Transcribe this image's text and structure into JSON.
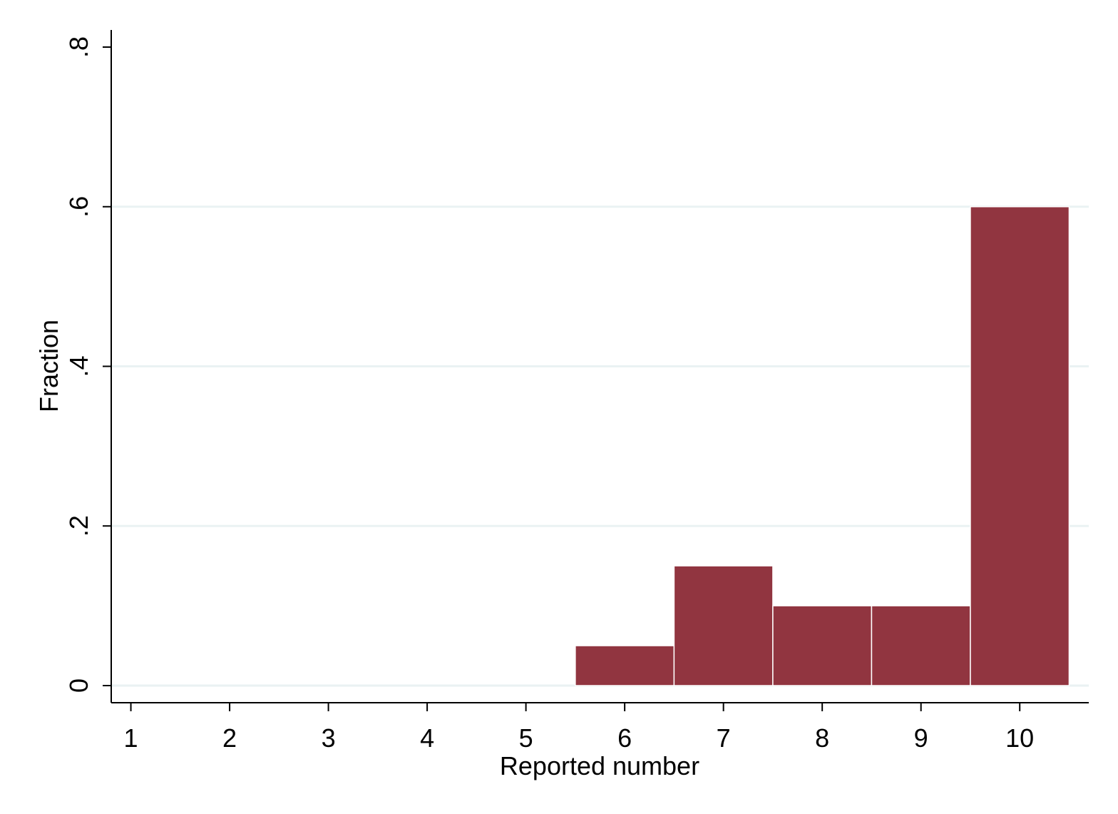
{
  "chart_data": {
    "type": "bar",
    "subtype": "histogram",
    "title": "",
    "xlabel": "Reported number",
    "ylabel": "Fraction",
    "x_ticks": [
      "1",
      "2",
      "3",
      "4",
      "5",
      "6",
      "7",
      "8",
      "9",
      "10"
    ],
    "y_ticks": [
      {
        "value": 0,
        "label": "0"
      },
      {
        "value": 0.2,
        "label": ".2"
      },
      {
        "value": 0.4,
        "label": ".4"
      },
      {
        "value": 0.6,
        "label": ".6"
      },
      {
        "value": 0.8,
        "label": ".8"
      }
    ],
    "xlim": [
      0.83,
      10.67
    ],
    "ylim": [
      0,
      0.82
    ],
    "categories": [
      1,
      2,
      3,
      4,
      5,
      6,
      7,
      8,
      9,
      10
    ],
    "values": [
      0,
      0,
      0,
      0,
      0,
      0.05,
      0.15,
      0.1,
      0.1,
      0.6
    ],
    "bin_width": 1,
    "grid": true,
    "colors": {
      "bar_fill": "#913540",
      "bar_edge": "#ffffff",
      "grid": "#eaf2f3",
      "axis": "#000000",
      "background": "#ffffff"
    }
  }
}
